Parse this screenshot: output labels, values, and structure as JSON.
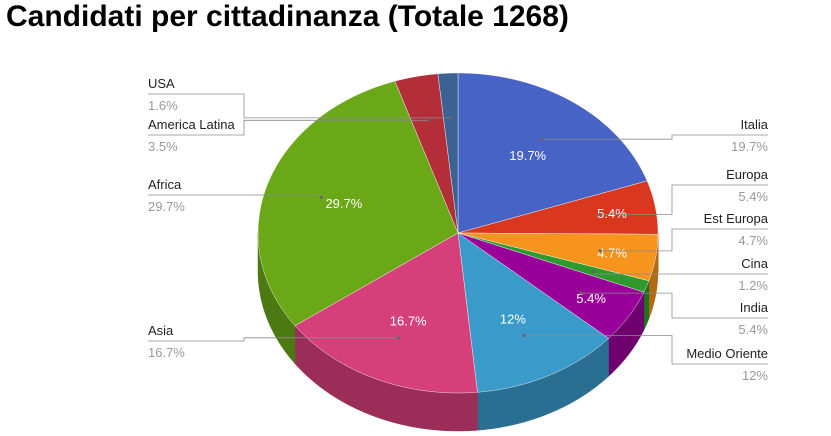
{
  "title": "Candidati per cittadinanza (Totale 1268)",
  "chart_data": {
    "type": "pie",
    "title": "Candidati per cittadinanza (Totale 1268)",
    "three_d": true,
    "legend": "labeled lines",
    "slices": [
      {
        "name": "Italia",
        "value": 19.7,
        "label": "19.7%",
        "inside": "19.7%",
        "color": "#4763c6"
      },
      {
        "name": "Europa",
        "value": 5.4,
        "label": "5.4%",
        "inside": "5.4%",
        "color": "#d9381e"
      },
      {
        "name": "Est Europa",
        "value": 4.7,
        "label": "4.7%",
        "inside": "4.7%",
        "color": "#f7941d"
      },
      {
        "name": "Cina",
        "value": 1.2,
        "label": "1.2%",
        "inside": "",
        "color": "#2e9a2e"
      },
      {
        "name": "India",
        "value": 5.4,
        "label": "5.4%",
        "inside": "5.4%",
        "color": "#990099"
      },
      {
        "name": "Medio Oriente",
        "value": 12.0,
        "label": "12%",
        "inside": "12%",
        "color": "#3a9ac9"
      },
      {
        "name": "Asia",
        "value": 16.7,
        "label": "16.7%",
        "inside": "16.7%",
        "color": "#d6407a"
      },
      {
        "name": "Africa",
        "value": 29.7,
        "label": "29.7%",
        "inside": "29.7%",
        "color": "#6aa818"
      },
      {
        "name": "America Latina",
        "value": 3.5,
        "label": "3.5%",
        "inside": "",
        "color": "#b42e3a"
      },
      {
        "name": "USA",
        "value": 1.6,
        "label": "1.6%",
        "inside": "",
        "color": "#3c6294"
      }
    ]
  }
}
